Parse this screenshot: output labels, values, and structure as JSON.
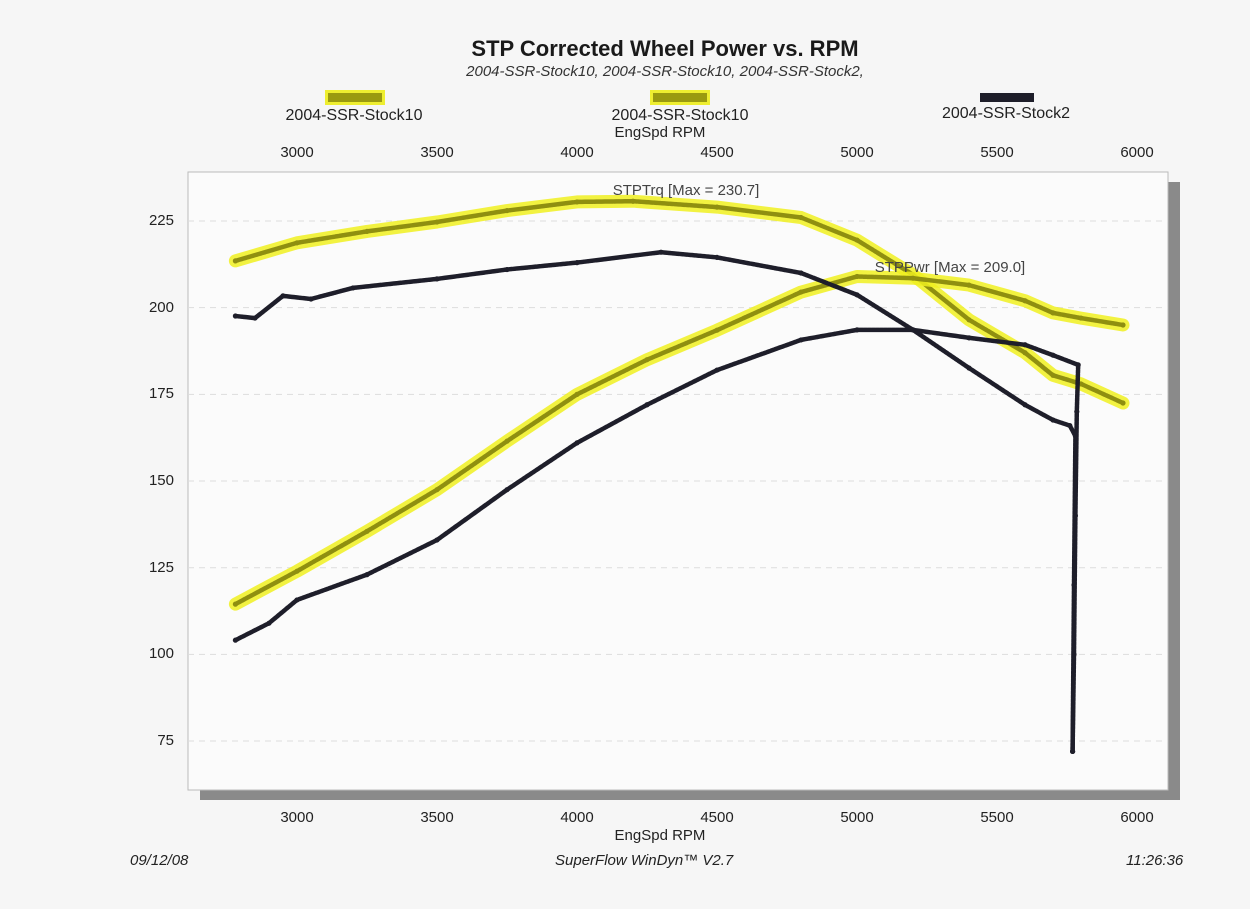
{
  "chart_data": {
    "type": "line",
    "title": "STP Corrected Wheel Power vs. RPM",
    "subtitle": "2004-SSR-Stock10, 2004-SSR-Stock10, 2004-SSR-Stock2,",
    "xlabel": "EngSpd  RPM",
    "ylabel": "",
    "xlim": [
      2600,
      6100
    ],
    "ylim": [
      65,
      240
    ],
    "x_ticks": [
      "3000",
      "3500",
      "4000",
      "4500",
      "5000",
      "5500",
      "6000"
    ],
    "y_ticks": [
      "225",
      "200",
      "175",
      "150",
      "125",
      "100",
      "75"
    ],
    "grid": "horizontal dashed",
    "legend": [
      {
        "label": "2004-SSR-Stock10",
        "color": "#9a9a10"
      },
      {
        "label": "2004-SSR-Stock10",
        "color": "#9a9a10"
      },
      {
        "label": "2004-SSR-Stock2",
        "color": "#1e1e2a"
      }
    ],
    "legend_position": "top",
    "annotations": [
      "STPTrq [Max = 230.7]",
      "STPPwr [Max = 209.0]"
    ],
    "series": [
      {
        "name": "2004-SSR-Stock10",
        "measure": "STPTrq",
        "color": "#8f8f10",
        "highlight": "#f0f020",
        "x": [
          2780,
          3000,
          3250,
          3500,
          3750,
          4000,
          4200,
          4500,
          4800,
          5000,
          5200,
          5400,
          5600,
          5700,
          5800,
          5950
        ],
        "y": [
          213.5,
          218.7,
          222,
          224.7,
          228,
          230.5,
          230.7,
          229,
          226,
          219.5,
          209.5,
          196.5,
          187,
          180.5,
          178,
          172.5
        ]
      },
      {
        "name": "2004-SSR-Stock10",
        "measure": "STPPwr",
        "color": "#8f8f10",
        "highlight": "#f0f020",
        "x": [
          2780,
          3000,
          3250,
          3500,
          3750,
          4000,
          4250,
          4500,
          4800,
          5000,
          5200,
          5400,
          5600,
          5700,
          5800,
          5950
        ],
        "y": [
          114.5,
          124,
          135.5,
          147.5,
          161.5,
          175,
          185,
          193.5,
          204.5,
          209,
          208.5,
          206.5,
          202,
          198.5,
          197,
          195
        ]
      },
      {
        "name": "2004-SSR-Stock2",
        "measure": "STPTrq",
        "color": "#1e1e2a",
        "x": [
          2780,
          2850,
          2950,
          3050,
          3200,
          3500,
          3750,
          4000,
          4300,
          4500,
          4800,
          5000,
          5200,
          5400,
          5600,
          5700,
          5760,
          5780,
          5775,
          5770
        ],
        "y": [
          197.6,
          197,
          203.4,
          202.5,
          205.7,
          208.3,
          211,
          213,
          216,
          214.5,
          210,
          203.7,
          193.6,
          182.6,
          172,
          167.6,
          166,
          163,
          120,
          72
        ]
      },
      {
        "name": "2004-SSR-Stock2",
        "measure": "STPPwr",
        "color": "#1e1e2a",
        "x": [
          2780,
          2900,
          3000,
          3250,
          3500,
          3750,
          4000,
          4250,
          4500,
          4800,
          5000,
          5200,
          5400,
          5600,
          5700,
          5790,
          5785,
          5780,
          5775,
          5770
        ],
        "y": [
          104.1,
          109,
          115.7,
          123,
          133,
          147.5,
          161,
          172,
          182,
          190.7,
          193.6,
          193.6,
          191.3,
          189.3,
          186.3,
          183.5,
          170,
          140,
          100,
          72
        ]
      }
    ]
  },
  "footer": {
    "date": "09/12/08",
    "software": "SuperFlow WinDyn™ V2.7",
    "time": "11:26:36"
  }
}
